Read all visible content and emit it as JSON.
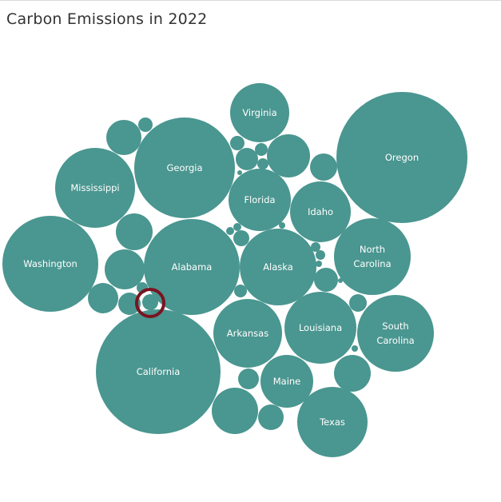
{
  "chart_title": "Carbon Emissions in 2022",
  "colors": {
    "bubble": "#4a9690",
    "highlight_ring": "#7a1420",
    "background": "#ffffff"
  },
  "chart_data": {
    "type": "packed-bubble",
    "title": "Carbon Emissions in 2022",
    "labeled_bubbles": [
      {
        "name": "California",
        "size": 100
      },
      {
        "name": "Oregon",
        "size": 110
      },
      {
        "name": "Georgia",
        "size": 67
      },
      {
        "name": "Alabama",
        "size": 60
      },
      {
        "name": "Washington",
        "size": 60
      },
      {
        "name": "Alaska",
        "size": 39
      },
      {
        "name": "Mississippi",
        "size": 41
      },
      {
        "name": "Texas",
        "size": 31
      },
      {
        "name": "North Carolina",
        "lines": [
          "North",
          "Carolina"
        ],
        "size": 38
      },
      {
        "name": "South Carolina",
        "lines": [
          "South",
          "Carolina"
        ],
        "size": 38
      },
      {
        "name": "Louisiana",
        "size": 32
      },
      {
        "name": "Arkansas",
        "size": 30
      },
      {
        "name": "Florida",
        "size": 24
      },
      {
        "name": "Idaho",
        "size": 24
      },
      {
        "name": "Virginia",
        "size": 22
      },
      {
        "name": "Maine",
        "size": 17
      }
    ],
    "unlabeled_bubble_count": 31,
    "highlighted_bubble": "unlabeled"
  }
}
